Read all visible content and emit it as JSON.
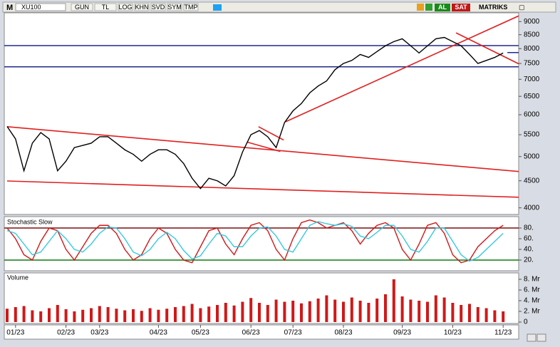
{
  "toolbar": {
    "logo": "M",
    "symbol": "XU100",
    "buttons": [
      "GUN",
      "TL",
      "LOG",
      "KHN",
      "SVD",
      "SYM",
      "TMP"
    ],
    "buy": "AL",
    "sell": "SAT",
    "brand": "MATRIKS"
  },
  "chart_data": [
    {
      "type": "line",
      "log": true,
      "x": [
        null,
        "01/23",
        null,
        null,
        null,
        null,
        null,
        "02/23",
        null,
        null,
        null,
        "03/23",
        null,
        null,
        null,
        null,
        null,
        null,
        "04/23",
        null,
        null,
        null,
        null,
        "05/23",
        null,
        null,
        null,
        null,
        null,
        "06/23",
        null,
        null,
        null,
        null,
        "07/23",
        null,
        null,
        null,
        null,
        null,
        "08/23",
        null,
        null,
        null,
        null,
        null,
        null,
        "09/23",
        null,
        null,
        null,
        null,
        null,
        "10/23",
        null,
        null,
        null,
        null,
        null,
        "11/23"
      ],
      "series": [
        {
          "color": "#000000",
          "values": [
            5700,
            5400,
            4700,
            5300,
            5550,
            5400,
            4700,
            4900,
            5200,
            5250,
            5300,
            5450,
            5450,
            5300,
            5150,
            5050,
            4900,
            5050,
            5150,
            5150,
            5050,
            4850,
            4550,
            4350,
            4550,
            4500,
            4400,
            4600,
            5100,
            5500,
            5600,
            5450,
            5200,
            5800,
            6100,
            6300,
            6600,
            6800,
            6950,
            7300,
            7500,
            7600,
            7800,
            7700,
            7900,
            8100,
            8250,
            8350,
            8100,
            7850,
            8100,
            8350,
            8400,
            8250,
            8100,
            7800,
            7500,
            7600,
            7700,
            7850
          ]
        }
      ],
      "ylim": [
        3850,
        9350
      ],
      "yticks": [
        4000,
        4500,
        5000,
        5500,
        6000,
        6500,
        7000,
        7500,
        8000,
        8500,
        9000
      ],
      "hlines": [
        {
          "value": 8108,
          "color": "#1f2a8a"
        },
        {
          "value": 7393,
          "color": "#1f2a8a"
        },
        {
          "value": 7864,
          "color": "#1f2a8a",
          "x0": 59.5,
          "x1": 61.2
        }
      ],
      "trendlines": [
        {
          "x0": 0,
          "y0": 5695,
          "x1": 61.2,
          "y1": 4680,
          "color": "#e02020"
        },
        {
          "x0": 0,
          "y0": 4496,
          "x1": 61.2,
          "y1": 4187,
          "color": "#e02020"
        },
        {
          "x0": 29.9,
          "y0": 5695,
          "x1": 32.9,
          "y1": 5373,
          "color": "#e02020"
        },
        {
          "x0": 28.6,
          "y0": 5322,
          "x1": 32.5,
          "y1": 5113,
          "color": "#e02020"
        },
        {
          "x0": 33.1,
          "y0": 5817,
          "x1": 61.2,
          "y1": 9280,
          "color": "#e02020"
        },
        {
          "x0": 53.4,
          "y0": 8568,
          "x1": 61.2,
          "y1": 7441,
          "color": "#e02020"
        }
      ]
    },
    {
      "type": "line",
      "title": "Stochastic Slow",
      "series": [
        {
          "color": "#d01818",
          "values": [
            80,
            60,
            30,
            20,
            55,
            80,
            75,
            40,
            20,
            45,
            70,
            85,
            85,
            70,
            40,
            20,
            30,
            60,
            80,
            70,
            40,
            20,
            15,
            45,
            75,
            80,
            50,
            30,
            60,
            85,
            90,
            75,
            40,
            20,
            60,
            90,
            95,
            90,
            80,
            85,
            90,
            75,
            50,
            70,
            85,
            90,
            80,
            40,
            20,
            50,
            85,
            90,
            70,
            30,
            15,
            20,
            45,
            60,
            75,
            85
          ]
        },
        {
          "color": "#35c8e0",
          "values": [
            75,
            70,
            50,
            30,
            35,
            55,
            75,
            60,
            40,
            35,
            50,
            70,
            82,
            80,
            60,
            35,
            28,
            40,
            60,
            72,
            60,
            38,
            22,
            28,
            50,
            70,
            65,
            45,
            45,
            65,
            80,
            82,
            65,
            40,
            35,
            60,
            85,
            92,
            88,
            85,
            88,
            83,
            65,
            60,
            72,
            85,
            85,
            65,
            40,
            35,
            55,
            80,
            80,
            55,
            30,
            18,
            25,
            40,
            55,
            70
          ]
        }
      ],
      "ylim": [
        0,
        100
      ],
      "yticks": [
        {
          "value": 20,
          "label": "20."
        },
        {
          "value": 40,
          "label": "40."
        },
        {
          "value": 60,
          "label": "60."
        },
        {
          "value": 80,
          "label": "80."
        }
      ],
      "hlines": [
        {
          "value": 80,
          "color": "#7a1010"
        },
        {
          "value": 20,
          "color": "#107a10"
        }
      ]
    },
    {
      "type": "bar",
      "title": "Volume",
      "color": "#d01818",
      "values": [
        2.5,
        2.8,
        3.0,
        2.2,
        2.0,
        2.6,
        3.2,
        2.4,
        2.0,
        2.3,
        2.6,
        3.0,
        2.8,
        2.5,
        2.2,
        2.4,
        2.1,
        2.6,
        2.3,
        2.5,
        2.8,
        3.0,
        3.4,
        2.6,
        2.9,
        3.2,
        3.6,
        3.1,
        3.8,
        4.5,
        3.6,
        3.2,
        4.2,
        3.8,
        4.0,
        3.5,
        3.9,
        4.4,
        5.0,
        4.2,
        3.8,
        4.6,
        4.0,
        3.6,
        4.4,
        5.2,
        8.0,
        4.8,
        4.2,
        4.0,
        3.8,
        5.0,
        4.6,
        3.6,
        3.2,
        3.4,
        2.8,
        2.6,
        2.2,
        2.0
      ],
      "ylim": [
        0,
        9.2
      ],
      "yticks": [
        0,
        {
          "value": 2,
          "label": "2. Mr"
        },
        {
          "value": 4,
          "label": "4. Mr"
        },
        {
          "value": 6,
          "label": "6. Mr"
        },
        {
          "value": 8,
          "label": "8. Mr"
        }
      ]
    }
  ]
}
